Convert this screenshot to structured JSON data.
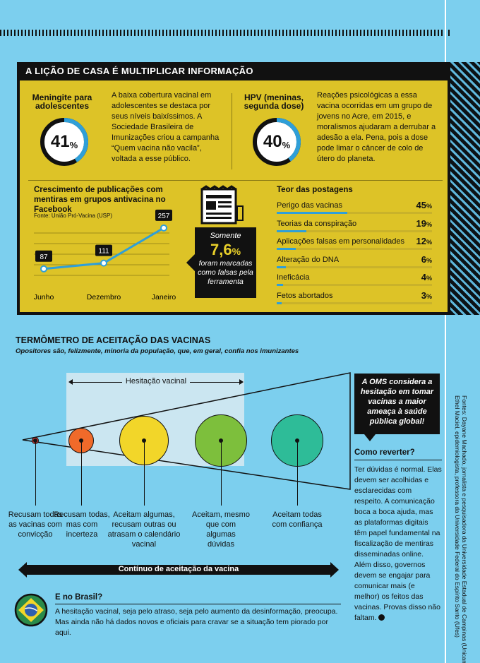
{
  "header_band": "A LIÇÃO DE CASA É MULTIPLICAR INFORMAÇÃO",
  "meningite": {
    "title": "Meningite para adolescentes",
    "percent": "41",
    "unit": "%",
    "value": 0.41,
    "text": "A baixa cobertura vacinal em adolescentes se destaca por seus níveis baixíssimos. A Sociedade Brasileira de Imunizações criou a campanha “Quem vacina não vacila”, voltada a esse público."
  },
  "hpv": {
    "title": "HPV (meninas, segunda dose)",
    "percent": "40",
    "unit": "%",
    "value": 0.4,
    "text": "Reações psicológicas a essa vacina ocorridas em um grupo de jovens no Acre, em 2015, e moralismos ajudaram a derrubar a adesão a ela. Pena, pois a dose pode limar o câncer de colo de útero do planeta."
  },
  "growth_chart": {
    "title": "Crescimento de publicações com mentiras em grupos antivacina no Facebook",
    "source": "Fonte: União Pró-Vacina (USP)",
    "chart_data": {
      "type": "line",
      "categories": [
        "Junho",
        "Dezembro",
        "Janeiro"
      ],
      "values": [
        87,
        111,
        257
      ],
      "data_labels": [
        "87",
        "111",
        "257"
      ]
    }
  },
  "somente_box": {
    "line1": "Somente",
    "value": "7,6",
    "unit": "%",
    "line3": "foram marcadas como falsas pela ferramenta"
  },
  "teor": {
    "title": "Teor das postagens",
    "chart_data": {
      "type": "bar",
      "categories": [
        "Perigo das vacinas",
        "Teorias da conspiração",
        "Aplicações falsas em personalidades",
        "Alteração do DNA",
        "Ineficácia",
        "Fetos abortados"
      ],
      "values": [
        45,
        19,
        12,
        6,
        4,
        3
      ],
      "value_labels": [
        "45",
        "19",
        "12",
        "6",
        "4",
        "3"
      ],
      "unit": "%"
    }
  },
  "termometro": {
    "title": "TERMÔMETRO DE ACEITAÇÃO DAS VACINAS",
    "subtitle": "Opositores são, felizmente, minoria da população, que, em geral, confia nos imunizantes",
    "hesitacao_label": "Hesitação vacinal",
    "groups": [
      {
        "label": "Recusam todas as vacinas com convicção",
        "color": "#e53935"
      },
      {
        "label": "Recusam todas, mas com incerteza",
        "color": "#f06a2a"
      },
      {
        "label": "Aceitam algumas, recusam outras ou atrasam o calendário vacinal",
        "color": "#f2d629"
      },
      {
        "label": "Aceitam, mesmo que com algumas dúvidas",
        "color": "#7dbf3c"
      },
      {
        "label": "Aceitam todas com confiança",
        "color": "#2ebc98"
      }
    ],
    "continuum_label": "Contínuo de aceitação da vacina"
  },
  "oms_box": "A OMS considera a hesitação em tomar vacinas a maior ameaça à saúde pública global!",
  "como_reverter": {
    "title": "Como reverter?",
    "text": "Ter dúvidas é normal. Elas devem ser acolhidas e esclarecidas com respeito. A comunicação boca a boca ajuda, mas as plataformas digitais têm papel fundamental na fiscalização de mentiras disseminadas online. Além disso, governos devem se engajar para comunicar mais (e melhor) os feitos das vacinas. Provas disso não faltam."
  },
  "brasil": {
    "title": "E no Brasil?",
    "text": "A hesitação vacinal, seja pelo atraso, seja pelo aumento da desinformação, preocupa. Mas ainda não há dados novos e oficiais para cravar se a situação tem piorado por aqui."
  },
  "credits": {
    "line1": "Fontes: Dayane Machado, jornalista e pesquisadora da Universidade Estadual de Campinas (Unicamp);",
    "line2": "Ethel Maciel, epidemiologista, professora da Universidade Federal do Espírito Santo (Ufes)"
  },
  "colors": {
    "yellow": "#ddc327",
    "blue": "#2f9fd8",
    "sky": "#7ccfee",
    "dark": "#111111"
  }
}
